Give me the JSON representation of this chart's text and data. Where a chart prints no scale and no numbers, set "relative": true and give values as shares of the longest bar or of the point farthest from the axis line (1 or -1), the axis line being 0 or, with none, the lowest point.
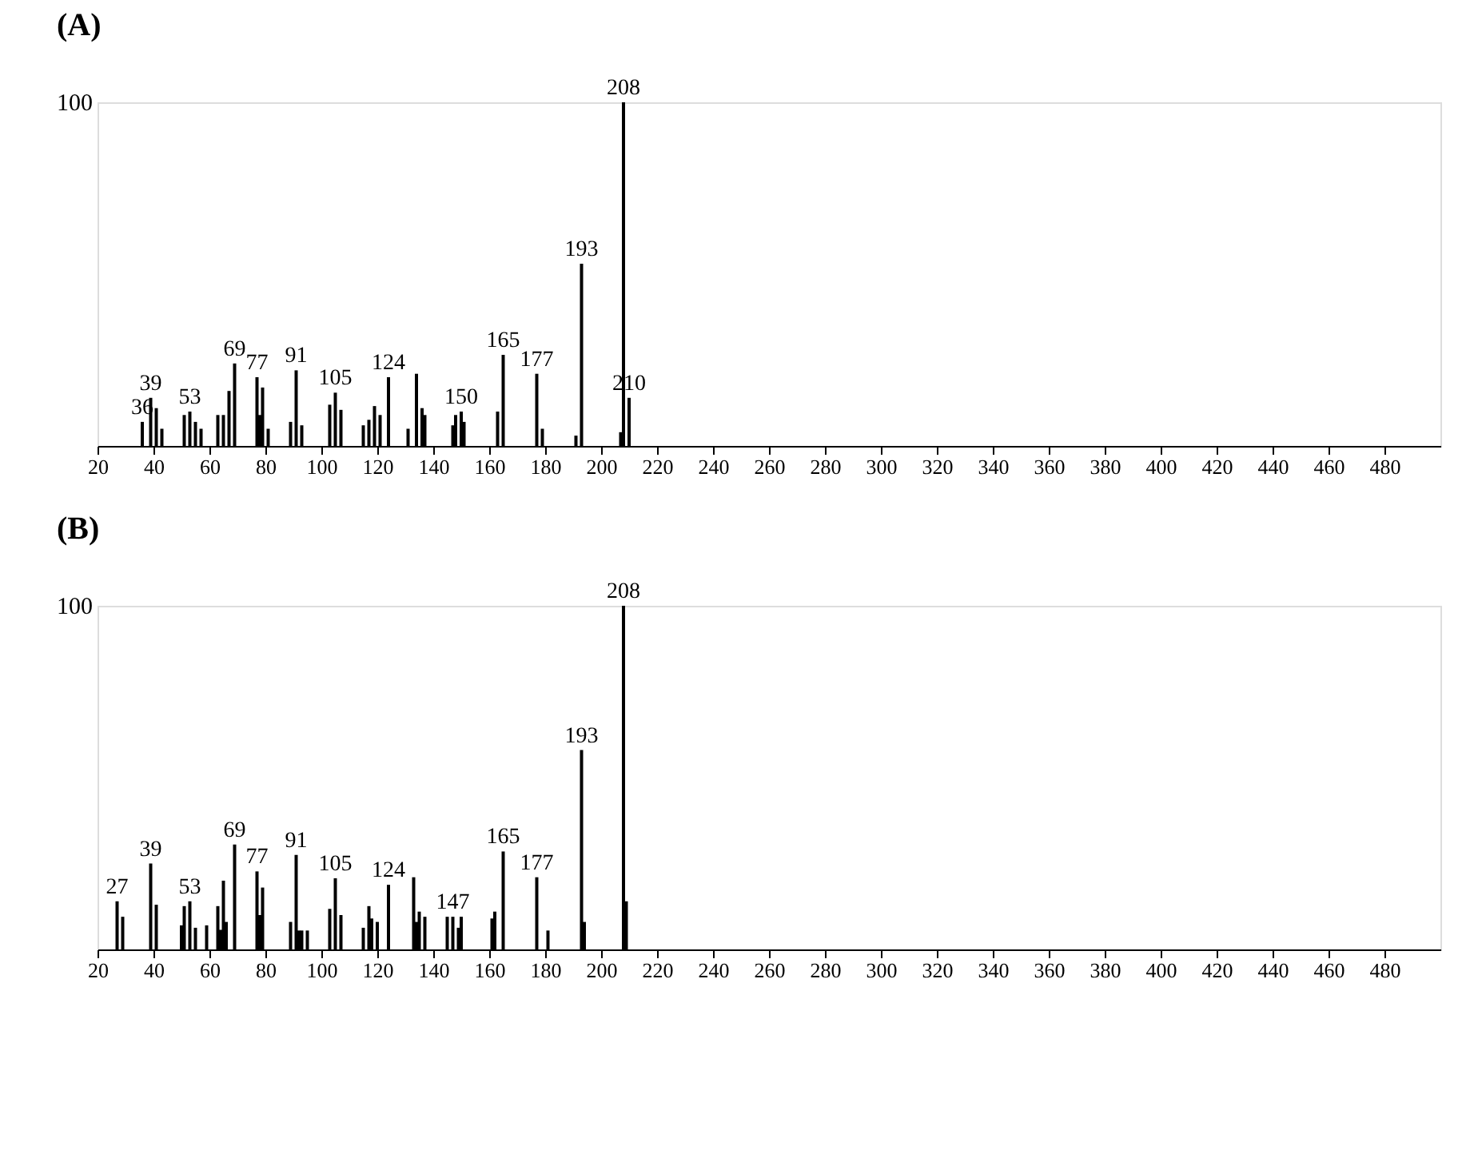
{
  "chart_data": [
    {
      "type": "bar",
      "title": "(A)",
      "relative": true,
      "color": "#000000",
      "x": [
        36,
        39,
        41,
        43,
        51,
        53,
        55,
        57,
        63,
        65,
        67,
        69,
        77,
        78,
        79,
        81,
        89,
        91,
        93,
        103,
        105,
        107,
        115,
        117,
        119,
        121,
        124,
        131,
        134,
        136,
        137,
        147,
        148,
        150,
        151,
        163,
        165,
        177,
        179,
        191,
        193,
        207,
        208,
        210
      ],
      "values": [
        0.07,
        0.14,
        0.11,
        0.05,
        0.09,
        0.1,
        0.07,
        0.05,
        0.09,
        0.09,
        0.16,
        0.24,
        0.2,
        0.09,
        0.17,
        0.05,
        0.07,
        0.22,
        0.06,
        0.12,
        0.155,
        0.105,
        0.06,
        0.076,
        0.116,
        0.09,
        0.2,
        0.05,
        0.21,
        0.11,
        0.09,
        0.06,
        0.09,
        0.1,
        0.07,
        0.1,
        0.265,
        0.21,
        0.05,
        0.03,
        0.53,
        0.04,
        1.0,
        0.14
      ],
      "xlim": [
        20,
        500
      ],
      "xticks": [
        20,
        40,
        60,
        80,
        100,
        120,
        140,
        160,
        180,
        200,
        220,
        240,
        260,
        280,
        300,
        320,
        340,
        360,
        380,
        400,
        420,
        440,
        460,
        480
      ],
      "annotations": [
        "100",
        {
          "text": "36",
          "x": 36,
          "y": 0.07
        },
        {
          "text": "39",
          "x": 39,
          "y": 0.14
        },
        {
          "text": "53",
          "x": 53,
          "y": 0.1
        },
        {
          "text": "69",
          "x": 69,
          "y": 0.24
        },
        {
          "text": "77",
          "x": 77,
          "y": 0.2
        },
        {
          "text": "91",
          "x": 91,
          "y": 0.22
        },
        {
          "text": "105",
          "x": 105,
          "y": 0.155
        },
        {
          "text": "124",
          "x": 124,
          "y": 0.2
        },
        {
          "text": "150",
          "x": 150,
          "y": 0.1
        },
        {
          "text": "165",
          "x": 165,
          "y": 0.265
        },
        {
          "text": "177",
          "x": 177,
          "y": 0.21
        },
        {
          "text": "193",
          "x": 193,
          "y": 0.53
        },
        {
          "text": "208",
          "x": 208,
          "y": 1.0
        },
        {
          "text": "210",
          "x": 210,
          "y": 0.14
        }
      ]
    },
    {
      "type": "bar",
      "title": "(B)",
      "relative": true,
      "color": "#000000",
      "x": [
        27,
        29,
        39,
        41,
        50,
        51,
        53,
        55,
        59,
        63,
        64,
        65,
        66,
        69,
        77,
        78,
        79,
        89,
        91,
        92,
        93,
        95,
        103,
        105,
        107,
        115,
        117,
        118,
        120,
        124,
        133,
        134,
        135,
        137,
        145,
        147,
        149,
        150,
        161,
        162,
        165,
        177,
        181,
        193,
        194,
        208,
        209
      ],
      "values": [
        0.14,
        0.095,
        0.25,
        0.13,
        0.07,
        0.126,
        0.14,
        0.063,
        0.07,
        0.126,
        0.057,
        0.2,
        0.08,
        0.305,
        0.227,
        0.1,
        0.18,
        0.08,
        0.275,
        0.055,
        0.055,
        0.055,
        0.118,
        0.207,
        0.1,
        0.063,
        0.126,
        0.09,
        0.08,
        0.188,
        0.21,
        0.08,
        0.11,
        0.095,
        0.095,
        0.095,
        0.063,
        0.095,
        0.09,
        0.11,
        0.285,
        0.21,
        0.055,
        0.58,
        0.08,
        1.0,
        0.14
      ],
      "xlim": [
        20,
        500
      ],
      "xticks": [
        20,
        40,
        60,
        80,
        100,
        120,
        140,
        160,
        180,
        200,
        220,
        240,
        260,
        280,
        300,
        320,
        340,
        360,
        380,
        400,
        420,
        440,
        460,
        480
      ],
      "annotations": [
        "100",
        {
          "text": "27",
          "x": 27,
          "y": 0.14
        },
        {
          "text": "39",
          "x": 39,
          "y": 0.25
        },
        {
          "text": "53",
          "x": 53,
          "y": 0.14
        },
        {
          "text": "69",
          "x": 69,
          "y": 0.305
        },
        {
          "text": "77",
          "x": 77,
          "y": 0.227
        },
        {
          "text": "91",
          "x": 91,
          "y": 0.275
        },
        {
          "text": "105",
          "x": 105,
          "y": 0.207
        },
        {
          "text": "124",
          "x": 124,
          "y": 0.188
        },
        {
          "text": "147",
          "x": 147,
          "y": 0.095
        },
        {
          "text": "165",
          "x": 165,
          "y": 0.285
        },
        {
          "text": "177",
          "x": 177,
          "y": 0.21
        },
        {
          "text": "193",
          "x": 193,
          "y": 0.58
        },
        {
          "text": "208",
          "x": 208,
          "y": 1.0
        }
      ]
    }
  ]
}
